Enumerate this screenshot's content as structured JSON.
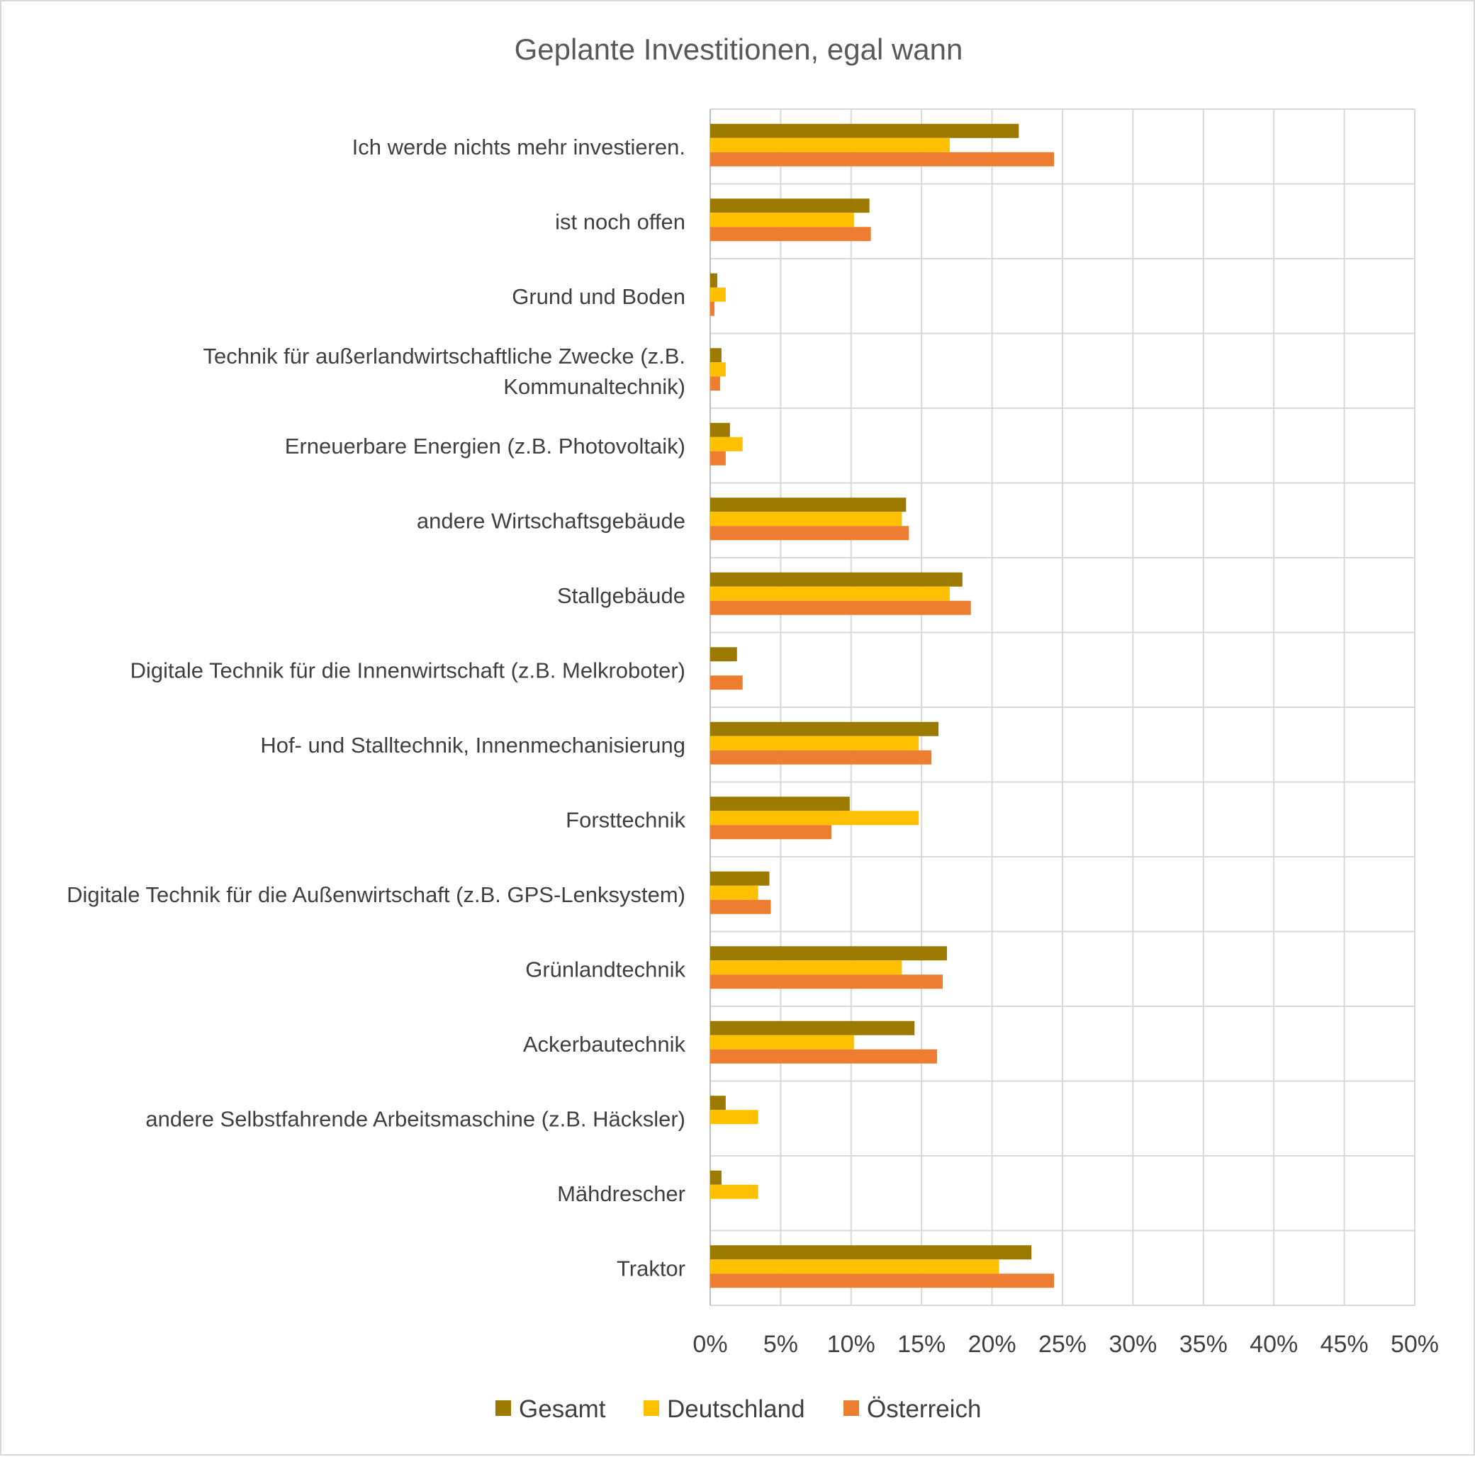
{
  "chart_data": {
    "type": "bar",
    "orientation": "horizontal",
    "title": "Geplante Investitionen, egal wann",
    "categories": [
      [
        "Ich werde nichts mehr investieren."
      ],
      [
        "ist noch offen"
      ],
      [
        "Grund und Boden"
      ],
      [
        "Technik für außerlandwirtschaftliche Zwecke (z.B.",
        "Kommunaltechnik)"
      ],
      [
        "Erneuerbare Energien (z.B. Photovoltaik)"
      ],
      [
        "andere Wirtschaftsgebäude"
      ],
      [
        "Stallgebäude"
      ],
      [
        "Digitale Technik für die Innenwirtschaft (z.B. Melkroboter)"
      ],
      [
        "Hof- und Stalltechnik, Innenmechanisierung"
      ],
      [
        "Forsttechnik"
      ],
      [
        "Digitale Technik für die Außenwirtschaft (z.B. GPS-Lenksystem)"
      ],
      [
        "Grünlandtechnik"
      ],
      [
        "Ackerbautechnik"
      ],
      [
        "andere Selbstfahrende Arbeitsmaschine (z.B. Häcksler)"
      ],
      [
        "Mähdrescher"
      ],
      [
        "Traktor"
      ]
    ],
    "series": [
      {
        "name": "Gesamt",
        "color": "#9c7a00",
        "values": [
          21.9,
          11.3,
          0.5,
          0.8,
          1.4,
          13.9,
          17.9,
          1.9,
          16.2,
          9.9,
          4.2,
          16.8,
          14.5,
          1.1,
          0.8,
          22.8
        ]
      },
      {
        "name": "Deutschland",
        "color": "#ffc000",
        "values": [
          17.0,
          10.2,
          1.1,
          1.1,
          2.3,
          13.6,
          17.0,
          0.0,
          14.8,
          14.8,
          3.4,
          13.6,
          10.2,
          3.4,
          3.4,
          20.5
        ]
      },
      {
        "name": "Österreich",
        "color": "#ed7d31",
        "values": [
          24.4,
          11.4,
          0.3,
          0.7,
          1.1,
          14.1,
          18.5,
          2.3,
          15.7,
          8.6,
          4.3,
          16.5,
          16.1,
          0.0,
          0.0,
          24.4
        ]
      }
    ],
    "x_ticks": [
      "0%",
      "5%",
      "10%",
      "15%",
      "20%",
      "25%",
      "30%",
      "35%",
      "40%",
      "45%",
      "50%"
    ],
    "xlim": [
      0,
      50
    ],
    "unit": "%",
    "grid": true,
    "legend_position": "bottom"
  }
}
